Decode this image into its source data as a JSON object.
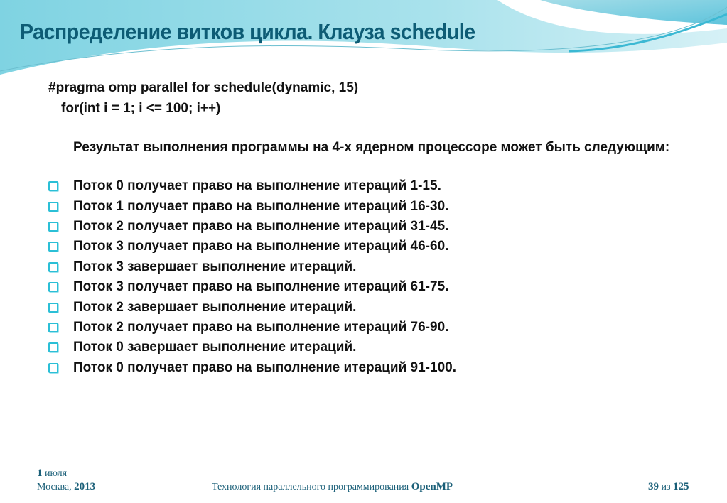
{
  "title": "Распределение витков цикла. Клауза schedule",
  "code": [
    "#pragma omp parallel for schedule(dynamic, 15)",
    "for(int i = 1; i <= 100; i++)"
  ],
  "intro": "Результат выполнения программы на 4-х ядерном процессоре может быть следующим:",
  "items": [
    "Поток 0 получает право на выполнение итераций 1-15.",
    "Поток 1 получает право на выполнение итераций 16-30.",
    "Поток 2 получает право на выполнение итераций 31-45.",
    "Поток 3 получает право на выполнение итераций 46-60.",
    "Поток 3 завершает выполнение итераций.",
    "Поток 3 получает право на выполнение итераций 61-75.",
    "Поток 2 завершает выполнение итераций.",
    "Поток 2 получает право на выполнение итераций 76-90.",
    "Поток 0 завершает выполнение итераций.",
    "Поток 0 получает право на выполнение итераций 91-100."
  ],
  "footer": {
    "day": "1",
    "month": " июля",
    "city": "Москва, ",
    "year": "2013",
    "course": "Технология параллельного программирования ",
    "course_bold": "OpenMP",
    "page": "39",
    "of": " из ",
    "total": "125"
  },
  "colors": {
    "title": "#0d5c75",
    "bullet": "#2bbfd6"
  }
}
